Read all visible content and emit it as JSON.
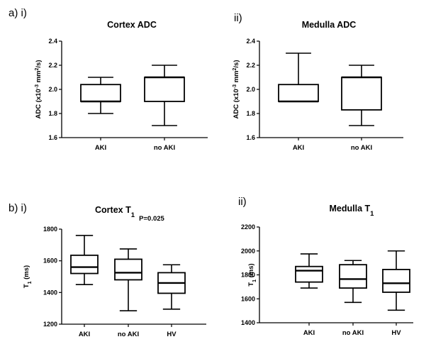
{
  "figure": {
    "labels": {
      "a": "a) i)",
      "a_ii": "ii)",
      "b": "b) i)",
      "b_ii": "ii)"
    }
  },
  "chart_data": [
    {
      "type": "box",
      "id": "cortex_adc",
      "title": "Cortex ADC",
      "ylabel": "ADC (x10-3 mm2/s)",
      "ylabel_parts": {
        "main": "ADC (x10",
        "sup1": "-3",
        "mid": " mm",
        "sup2": "2",
        "end": "/s)"
      },
      "ylim": [
        1.6,
        2.4
      ],
      "yticks": [
        1.6,
        1.8,
        2.0,
        2.2,
        2.4
      ],
      "ytick_labels": [
        "1.6",
        "1.8",
        "2.0",
        "2.2",
        "2.4"
      ],
      "categories": [
        "AKI",
        "no AKI"
      ],
      "boxes": [
        {
          "min": 1.8,
          "q1": 1.9,
          "median": 1.9,
          "q3": 2.04,
          "max": 2.1
        },
        {
          "min": 1.7,
          "q1": 1.9,
          "median": 2.1,
          "q3": 2.1,
          "max": 2.2
        }
      ]
    },
    {
      "type": "box",
      "id": "medulla_adc",
      "title": "Medulla ADC",
      "ylabel": "ADC (x10-3 mm2/s)",
      "ylabel_parts": {
        "main": "ADC (x10",
        "sup1": "-3",
        "mid": " mm",
        "sup2": "2",
        "end": "/s)"
      },
      "ylim": [
        1.6,
        2.4
      ],
      "yticks": [
        1.6,
        1.8,
        2.0,
        2.2,
        2.4
      ],
      "ytick_labels": [
        "1.6",
        "1.8",
        "2.0",
        "2.2",
        "2.4"
      ],
      "categories": [
        "AKI",
        "no AKI"
      ],
      "boxes": [
        {
          "min": 1.9,
          "q1": 1.9,
          "median": 1.9,
          "q3": 2.04,
          "max": 2.3
        },
        {
          "min": 1.7,
          "q1": 1.83,
          "median": 2.1,
          "q3": 2.1,
          "max": 2.2
        }
      ]
    },
    {
      "type": "box",
      "id": "cortex_t1",
      "title": "Cortex T1",
      "title_parts": {
        "main": "Cortex T",
        "sub": "1"
      },
      "annotation": "P=0.025",
      "ylabel": "T1 (ms)",
      "ylabel_parts": {
        "main": "T",
        "sub": "1",
        "end": " (ms)"
      },
      "ylim": [
        1200,
        1800
      ],
      "yticks": [
        1200,
        1400,
        1600,
        1800
      ],
      "ytick_labels": [
        "1200",
        "1400",
        "1600",
        "1800"
      ],
      "categories": [
        "AKI",
        "no AKI",
        "HV"
      ],
      "boxes": [
        {
          "min": 1450,
          "q1": 1520,
          "median": 1560,
          "q3": 1635,
          "max": 1760
        },
        {
          "min": 1285,
          "q1": 1480,
          "median": 1525,
          "q3": 1610,
          "max": 1675
        },
        {
          "min": 1295,
          "q1": 1395,
          "median": 1460,
          "q3": 1525,
          "max": 1575
        }
      ]
    },
    {
      "type": "box",
      "id": "medulla_t1",
      "title": "Medulla T1",
      "title_parts": {
        "main": "Medulla T",
        "sub": "1"
      },
      "ylabel": "T1 (ms)",
      "ylabel_parts": {
        "main": "T",
        "sub": "1",
        "end": " (ms)"
      },
      "ylim": [
        1400,
        2200
      ],
      "yticks": [
        1400,
        1600,
        1800,
        2000,
        2200
      ],
      "ytick_labels": [
        "1400",
        "1600",
        "1800",
        "2000",
        "2200"
      ],
      "categories": [
        "AKI",
        "no AKI",
        "HV"
      ],
      "boxes": [
        {
          "min": 1690,
          "q1": 1740,
          "median": 1835,
          "q3": 1870,
          "max": 1975
        },
        {
          "min": 1570,
          "q1": 1690,
          "median": 1765,
          "q3": 1885,
          "max": 1920
        },
        {
          "min": 1505,
          "q1": 1655,
          "median": 1730,
          "q3": 1845,
          "max": 2000
        }
      ]
    }
  ]
}
